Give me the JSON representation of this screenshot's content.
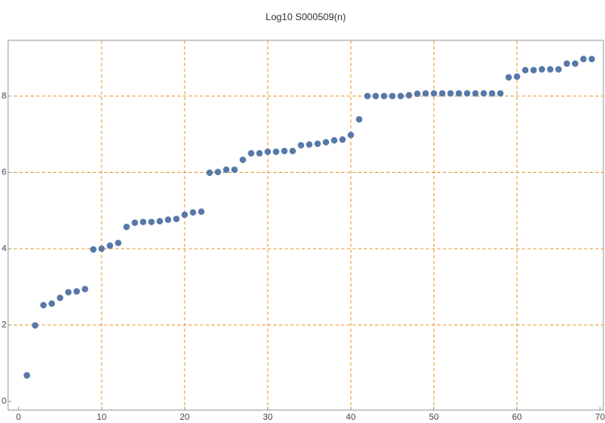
{
  "chart_data": {
    "type": "scatter",
    "title": "Log10 S000509(n)",
    "x": [
      1,
      2,
      3,
      4,
      5,
      6,
      7,
      8,
      9,
      10,
      11,
      12,
      13,
      14,
      15,
      16,
      17,
      18,
      19,
      20,
      21,
      22,
      23,
      24,
      25,
      26,
      27,
      28,
      29,
      30,
      31,
      32,
      33,
      34,
      35,
      36,
      37,
      38,
      39,
      40,
      41,
      42,
      43,
      44,
      45,
      46,
      47,
      48,
      49,
      50,
      51,
      52,
      53,
      54,
      55,
      56,
      57,
      58,
      59,
      60,
      61,
      62,
      63,
      64,
      65,
      66,
      67,
      68,
      69
    ],
    "y": [
      0.68,
      1.99,
      2.52,
      2.56,
      2.71,
      2.86,
      2.88,
      2.94,
      3.98,
      4.0,
      4.08,
      4.15,
      4.57,
      4.68,
      4.7,
      4.7,
      4.72,
      4.76,
      4.78,
      4.89,
      4.95,
      4.97,
      5.99,
      6.01,
      6.07,
      6.07,
      6.33,
      6.5,
      6.5,
      6.54,
      6.54,
      6.56,
      6.56,
      6.71,
      6.73,
      6.75,
      6.79,
      6.84,
      6.86,
      6.98,
      7.39,
      8.0,
      8.0,
      8.0,
      8.0,
      8.0,
      8.02,
      8.06,
      8.07,
      8.07,
      8.07,
      8.07,
      8.07,
      8.07,
      8.07,
      8.07,
      8.07,
      8.07,
      8.49,
      8.51,
      8.68,
      8.68,
      8.7,
      8.7,
      8.7,
      8.85,
      8.85,
      8.97,
      8.97
    ],
    "color": "#5778a9",
    "grid_color": "#e69a2e",
    "xlim": [
      -1.26,
      70.4
    ],
    "ylim": [
      -0.23,
      9.46
    ],
    "xticks": [
      0,
      10,
      20,
      30,
      40,
      50,
      60,
      70
    ],
    "yticks": [
      0,
      2,
      4,
      6,
      8
    ],
    "xgrid": [
      10,
      20,
      30,
      40,
      50,
      60
    ],
    "ygrid": [
      2,
      4,
      6,
      8
    ]
  }
}
